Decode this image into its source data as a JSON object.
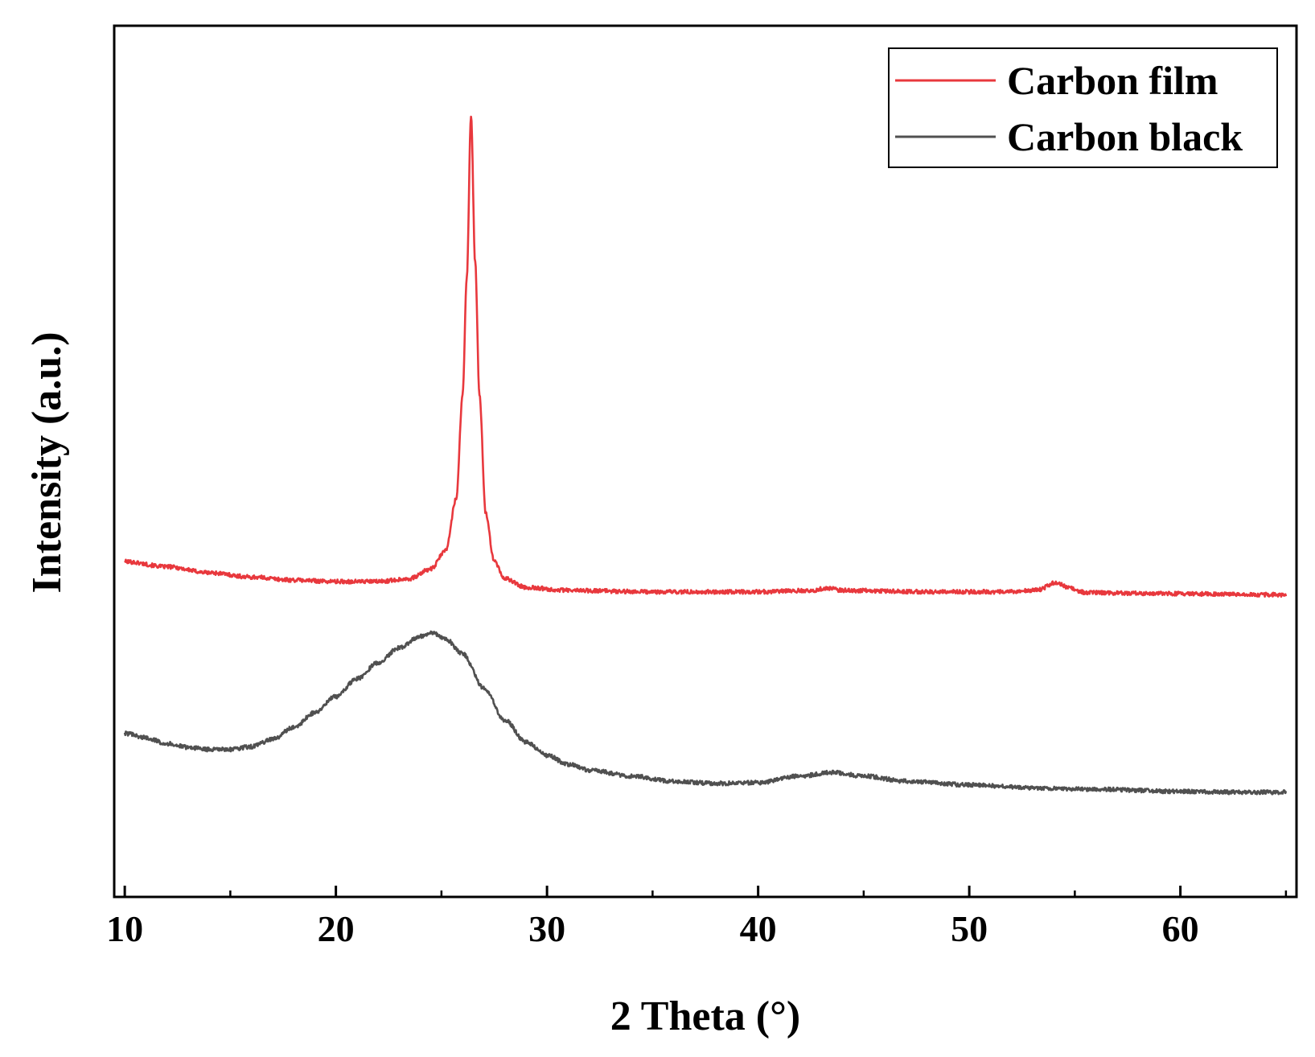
{
  "chart_data": {
    "type": "line",
    "title": "",
    "xlabel": "2 Theta (°)",
    "ylabel": "Intensity (a.u.)",
    "xlim": [
      9.5,
      65.5
    ],
    "ylim": [
      0,
      100
    ],
    "x_ticks": [
      10,
      20,
      30,
      40,
      50,
      60
    ],
    "x_minor_ticks": [
      15,
      25,
      35,
      45,
      55,
      65
    ],
    "y_ticks_shown": false,
    "grid": false,
    "legend": {
      "position": "top-right"
    },
    "series": [
      {
        "name": "Carbon film",
        "color": "#e8383d",
        "points": [
          [
            10,
            39.5
          ],
          [
            12,
            38.8
          ],
          [
            14,
            38.0
          ],
          [
            16,
            37.4
          ],
          [
            18,
            37.0
          ],
          [
            20,
            36.8
          ],
          [
            22,
            36.8
          ],
          [
            23.5,
            37.2
          ],
          [
            24.5,
            38.5
          ],
          [
            25.2,
            41.0
          ],
          [
            25.7,
            48.0
          ],
          [
            26.0,
            62.0
          ],
          [
            26.2,
            78.0
          ],
          [
            26.4,
            100.0
          ],
          [
            26.6,
            80.0
          ],
          [
            26.8,
            62.0
          ],
          [
            27.1,
            46.0
          ],
          [
            27.5,
            39.5
          ],
          [
            28.0,
            37.2
          ],
          [
            29.0,
            36.0
          ],
          [
            31,
            35.6
          ],
          [
            35,
            35.4
          ],
          [
            40,
            35.4
          ],
          [
            42.5,
            35.6
          ],
          [
            43.3,
            35.9
          ],
          [
            44,
            35.6
          ],
          [
            48,
            35.4
          ],
          [
            52,
            35.4
          ],
          [
            53.3,
            35.7
          ],
          [
            54.1,
            36.7
          ],
          [
            54.6,
            36.1
          ],
          [
            55.5,
            35.3
          ],
          [
            58,
            35.2
          ],
          [
            62,
            35.1
          ],
          [
            65,
            35.0
          ]
        ]
      },
      {
        "name": "Carbon black",
        "color": "#505050",
        "points": [
          [
            10,
            16.2
          ],
          [
            11,
            15.6
          ],
          [
            12,
            14.8
          ],
          [
            13,
            14.3
          ],
          [
            14,
            14.0
          ],
          [
            15,
            14.0
          ],
          [
            16,
            14.4
          ],
          [
            17,
            15.4
          ],
          [
            18,
            17.0
          ],
          [
            19,
            19.0
          ],
          [
            20,
            21.2
          ],
          [
            21,
            23.6
          ],
          [
            22,
            25.8
          ],
          [
            23,
            27.8
          ],
          [
            24,
            29.4
          ],
          [
            24.6,
            29.8
          ],
          [
            25.2,
            29.0
          ],
          [
            26,
            27.0
          ],
          [
            27,
            22.4
          ],
          [
            28,
            18.0
          ],
          [
            29,
            15.0
          ],
          [
            30,
            13.2
          ],
          [
            31,
            12.0
          ],
          [
            32,
            11.2
          ],
          [
            34,
            10.4
          ],
          [
            36,
            9.7
          ],
          [
            38,
            9.4
          ],
          [
            40,
            9.5
          ],
          [
            42,
            10.4
          ],
          [
            43.5,
            10.9
          ],
          [
            45,
            10.4
          ],
          [
            47,
            9.7
          ],
          [
            50,
            9.2
          ],
          [
            53,
            8.8
          ],
          [
            56,
            8.6
          ],
          [
            60,
            8.3
          ],
          [
            63,
            8.2
          ],
          [
            65,
            8.2
          ]
        ]
      }
    ]
  }
}
